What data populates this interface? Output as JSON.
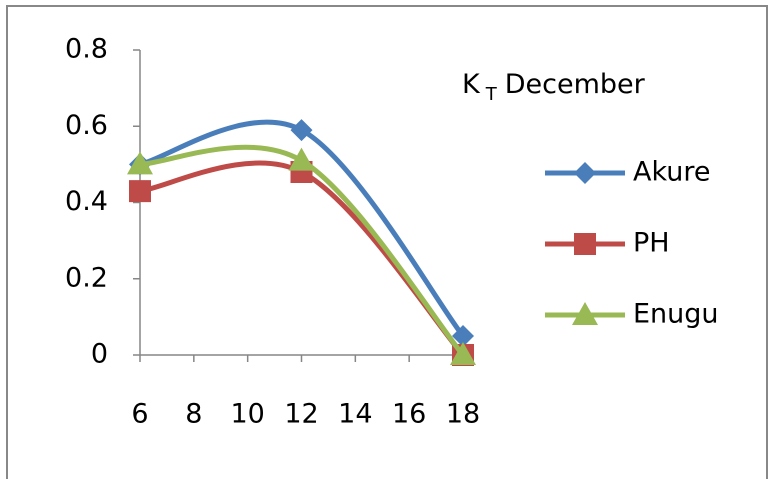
{
  "chart_data": {
    "type": "scatter-smooth",
    "title": {
      "main": "K",
      "subscript": "T",
      "rest": "December"
    },
    "x": [
      6,
      12,
      18
    ],
    "series": [
      {
        "name": "Akure",
        "color": "#4a7ebb",
        "marker": "diamond",
        "values": [
          0.5,
          0.59,
          0.05
        ]
      },
      {
        "name": "PH",
        "color": "#be4b48",
        "marker": "square",
        "values": [
          0.43,
          0.48,
          0.0
        ]
      },
      {
        "name": "Enugu",
        "color": "#98b954",
        "marker": "triangle",
        "values": [
          0.5,
          0.51,
          0.0
        ]
      }
    ],
    "xlim": [
      6,
      18
    ],
    "xticks": [
      6,
      8,
      10,
      12,
      14,
      16,
      18
    ],
    "ylim": [
      0,
      0.8
    ],
    "yticks": [
      0,
      0.2,
      0.4,
      0.6,
      0.8
    ],
    "grid": false,
    "legend": "right"
  }
}
